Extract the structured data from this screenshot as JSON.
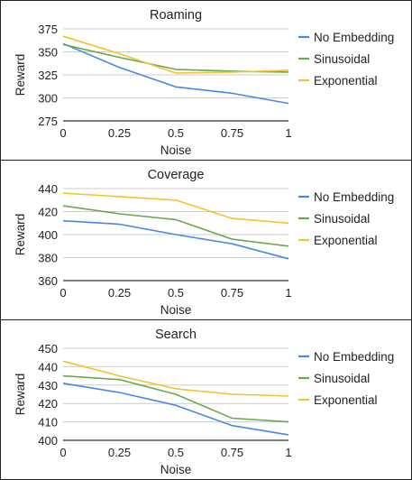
{
  "chart_data": [
    {
      "type": "line",
      "title": "Roaming",
      "xlabel": "Noise",
      "ylabel": "Reward",
      "x": [
        0,
        0.25,
        0.5,
        0.75,
        1
      ],
      "x_tick_labels": [
        "0",
        "0.25",
        "0.5",
        "0.75",
        "1"
      ],
      "ylim": [
        275,
        375
      ],
      "y_ticks": [
        275,
        300,
        325,
        350,
        375
      ],
      "grid": "horizontal",
      "legend": "right",
      "series": [
        {
          "name": "No Embedding",
          "color": "#4a86e8",
          "values": [
            359,
            333,
            312,
            305,
            294
          ]
        },
        {
          "name": "Sinusoidal",
          "color": "#6aa84f",
          "values": [
            358,
            344,
            331,
            329,
            328
          ]
        },
        {
          "name": "Exponential",
          "color": "#f1c232",
          "values": [
            367,
            348,
            327,
            328,
            330
          ]
        }
      ]
    },
    {
      "type": "line",
      "title": "Coverage",
      "xlabel": "Noise",
      "ylabel": "Reward",
      "x": [
        0,
        0.25,
        0.5,
        0.75,
        1
      ],
      "x_tick_labels": [
        "0",
        "0.25",
        "0.5",
        "0.75",
        "1"
      ],
      "ylim": [
        360,
        440
      ],
      "y_ticks": [
        360,
        380,
        400,
        420,
        440
      ],
      "grid": "horizontal",
      "legend": "right",
      "series": [
        {
          "name": "No Embedding",
          "color": "#4a86e8",
          "values": [
            412,
            409,
            400,
            392,
            379
          ]
        },
        {
          "name": "Sinusoidal",
          "color": "#6aa84f",
          "values": [
            425,
            418,
            413,
            396,
            390
          ]
        },
        {
          "name": "Exponential",
          "color": "#f1c232",
          "values": [
            436,
            433,
            430,
            414,
            410
          ]
        }
      ]
    },
    {
      "type": "line",
      "title": "Search",
      "xlabel": "Noise",
      "ylabel": "Reward",
      "x": [
        0,
        0.25,
        0.5,
        0.75,
        1
      ],
      "x_tick_labels": [
        "0",
        "0.25",
        "0.5",
        "0.75",
        "1"
      ],
      "ylim": [
        400,
        450
      ],
      "y_ticks": [
        400,
        410,
        420,
        430,
        440,
        450
      ],
      "grid": "horizontal",
      "legend": "right",
      "series": [
        {
          "name": "No Embedding",
          "color": "#4a86e8",
          "values": [
            431,
            426,
            419,
            408,
            403
          ]
        },
        {
          "name": "Sinusoidal",
          "color": "#6aa84f",
          "values": [
            435,
            433,
            425,
            412,
            410
          ]
        },
        {
          "name": "Exponential",
          "color": "#f1c232",
          "values": [
            443,
            435,
            428,
            425,
            424
          ]
        }
      ]
    }
  ]
}
